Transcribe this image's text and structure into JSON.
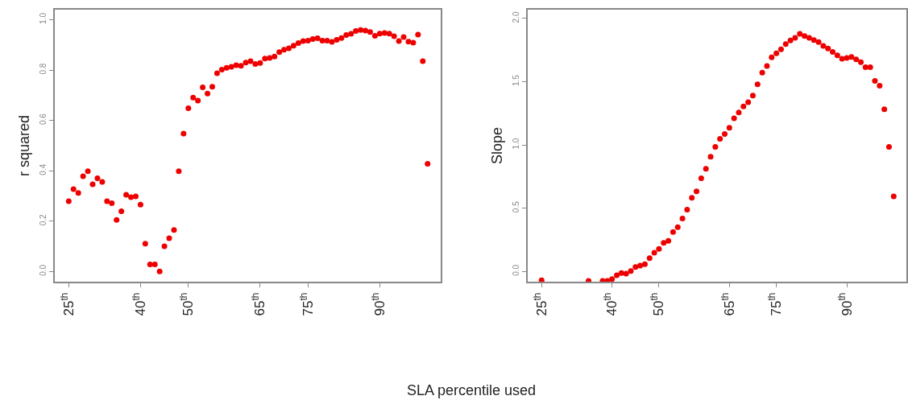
{
  "chart_data": [
    {
      "type": "scatter",
      "xlabel": "SLA percentile used",
      "ylabel": "r squared",
      "marker": "circle",
      "xlim": [
        22,
        102.7
      ],
      "ylim": [
        -0.04,
        1.04
      ],
      "xticks": [
        {
          "value": 25,
          "label": "25$^{th}$"
        },
        {
          "value": 40,
          "label": "40$^{th}$"
        },
        {
          "value": 50,
          "label": "50$^{th}$"
        },
        {
          "value": 65,
          "label": "65$^{th}$"
        },
        {
          "value": 75,
          "label": "75$^{th}$"
        },
        {
          "value": 90,
          "label": "90$^{th}$"
        }
      ],
      "yticks": [
        {
          "value": 0,
          "label": "0.0"
        },
        {
          "value": 0.2,
          "label": "0.2"
        },
        {
          "value": 0.4,
          "label": "0.4"
        },
        {
          "value": 0.6,
          "label": "0.6"
        },
        {
          "value": 0.8,
          "label": "0.8"
        },
        {
          "value": 1,
          "label": "1.0"
        }
      ],
      "series": [
        {
          "color": "#ee0000",
          "x": [
            25,
            26,
            27,
            28,
            29,
            30,
            31,
            32,
            33,
            34,
            35,
            36,
            37,
            38,
            39,
            40,
            41,
            42,
            43,
            44,
            45,
            46,
            47,
            48,
            49,
            50,
            51,
            52,
            53,
            54,
            55,
            56,
            57,
            58,
            59,
            60,
            61,
            62,
            63,
            64,
            65,
            66,
            67,
            68,
            69,
            70,
            71,
            72,
            73,
            74,
            75,
            76,
            77,
            78,
            79,
            80,
            81,
            82,
            83,
            84,
            85,
            86,
            87,
            88,
            89,
            90,
            91,
            92,
            93,
            94,
            95,
            96,
            97,
            98,
            99,
            100
          ],
          "values": [
            0.279,
            0.327,
            0.312,
            0.378,
            0.398,
            0.346,
            0.37,
            0.356,
            0.279,
            0.271,
            0.205,
            0.239,
            0.305,
            0.295,
            0.298,
            0.266,
            0.111,
            0.028,
            0.028,
            0.0,
            0.1,
            0.132,
            0.165,
            0.398,
            0.548,
            0.648,
            0.691,
            0.679,
            0.731,
            0.707,
            0.734,
            0.787,
            0.802,
            0.809,
            0.813,
            0.819,
            0.817,
            0.83,
            0.835,
            0.824,
            0.828,
            0.846,
            0.848,
            0.854,
            0.871,
            0.881,
            0.886,
            0.897,
            0.907,
            0.915,
            0.917,
            0.923,
            0.926,
            0.917,
            0.917,
            0.912,
            0.92,
            0.927,
            0.939,
            0.944,
            0.955,
            0.959,
            0.957,
            0.951,
            0.936,
            0.945,
            0.947,
            0.945,
            0.934,
            0.915,
            0.931,
            0.913,
            0.909,
            0.941,
            0.835,
            0.428
          ]
        }
      ]
    },
    {
      "type": "scatter",
      "ylabel": "Slope",
      "marker": "circle",
      "xlim": [
        22,
        102.7
      ],
      "ylim": [
        -0.08,
        2.07
      ],
      "xticks": [
        {
          "value": 25,
          "label": "25$^{th}$"
        },
        {
          "value": 40,
          "label": "40$^{th}$"
        },
        {
          "value": 50,
          "label": "50$^{th}$"
        },
        {
          "value": 65,
          "label": "65$^{th}$"
        },
        {
          "value": 75,
          "label": "75$^{th}$"
        },
        {
          "value": 90,
          "label": "90$^{th}$"
        }
      ],
      "yticks": [
        {
          "value": 0,
          "label": "0.0"
        },
        {
          "value": 0.5,
          "label": "0.5"
        },
        {
          "value": 1,
          "label": "1.0"
        },
        {
          "value": 1.5,
          "label": "1.5"
        },
        {
          "value": 2,
          "label": "2.0"
        }
      ],
      "series": [
        {
          "color": "#ee0000",
          "x": [
            25,
            35,
            38,
            39,
            40,
            41,
            42,
            43,
            44,
            45,
            46,
            47,
            48,
            49,
            50,
            51,
            52,
            53,
            54,
            55,
            56,
            57,
            58,
            59,
            60,
            61,
            62,
            63,
            64,
            65,
            66,
            67,
            68,
            69,
            70,
            71,
            72,
            73,
            74,
            75,
            76,
            77,
            78,
            79,
            80,
            81,
            82,
            83,
            84,
            85,
            86,
            87,
            88,
            89,
            90,
            91,
            92,
            93,
            94,
            95,
            96,
            97,
            98,
            99,
            100
          ],
          "values": [
            -0.07,
            -0.075,
            -0.075,
            -0.075,
            -0.06,
            -0.03,
            -0.013,
            -0.017,
            0.004,
            0.036,
            0.047,
            0.057,
            0.106,
            0.149,
            0.178,
            0.227,
            0.242,
            0.312,
            0.35,
            0.418,
            0.488,
            0.582,
            0.633,
            0.737,
            0.811,
            0.907,
            0.985,
            1.049,
            1.087,
            1.136,
            1.21,
            1.257,
            1.304,
            1.338,
            1.391,
            1.48,
            1.571,
            1.624,
            1.692,
            1.724,
            1.756,
            1.798,
            1.826,
            1.847,
            1.879,
            1.862,
            1.847,
            1.83,
            1.813,
            1.783,
            1.762,
            1.735,
            1.709,
            1.682,
            1.688,
            1.696,
            1.677,
            1.654,
            1.614,
            1.614,
            1.507,
            1.469,
            1.282,
            0.985,
            0.594
          ]
        }
      ]
    }
  ]
}
